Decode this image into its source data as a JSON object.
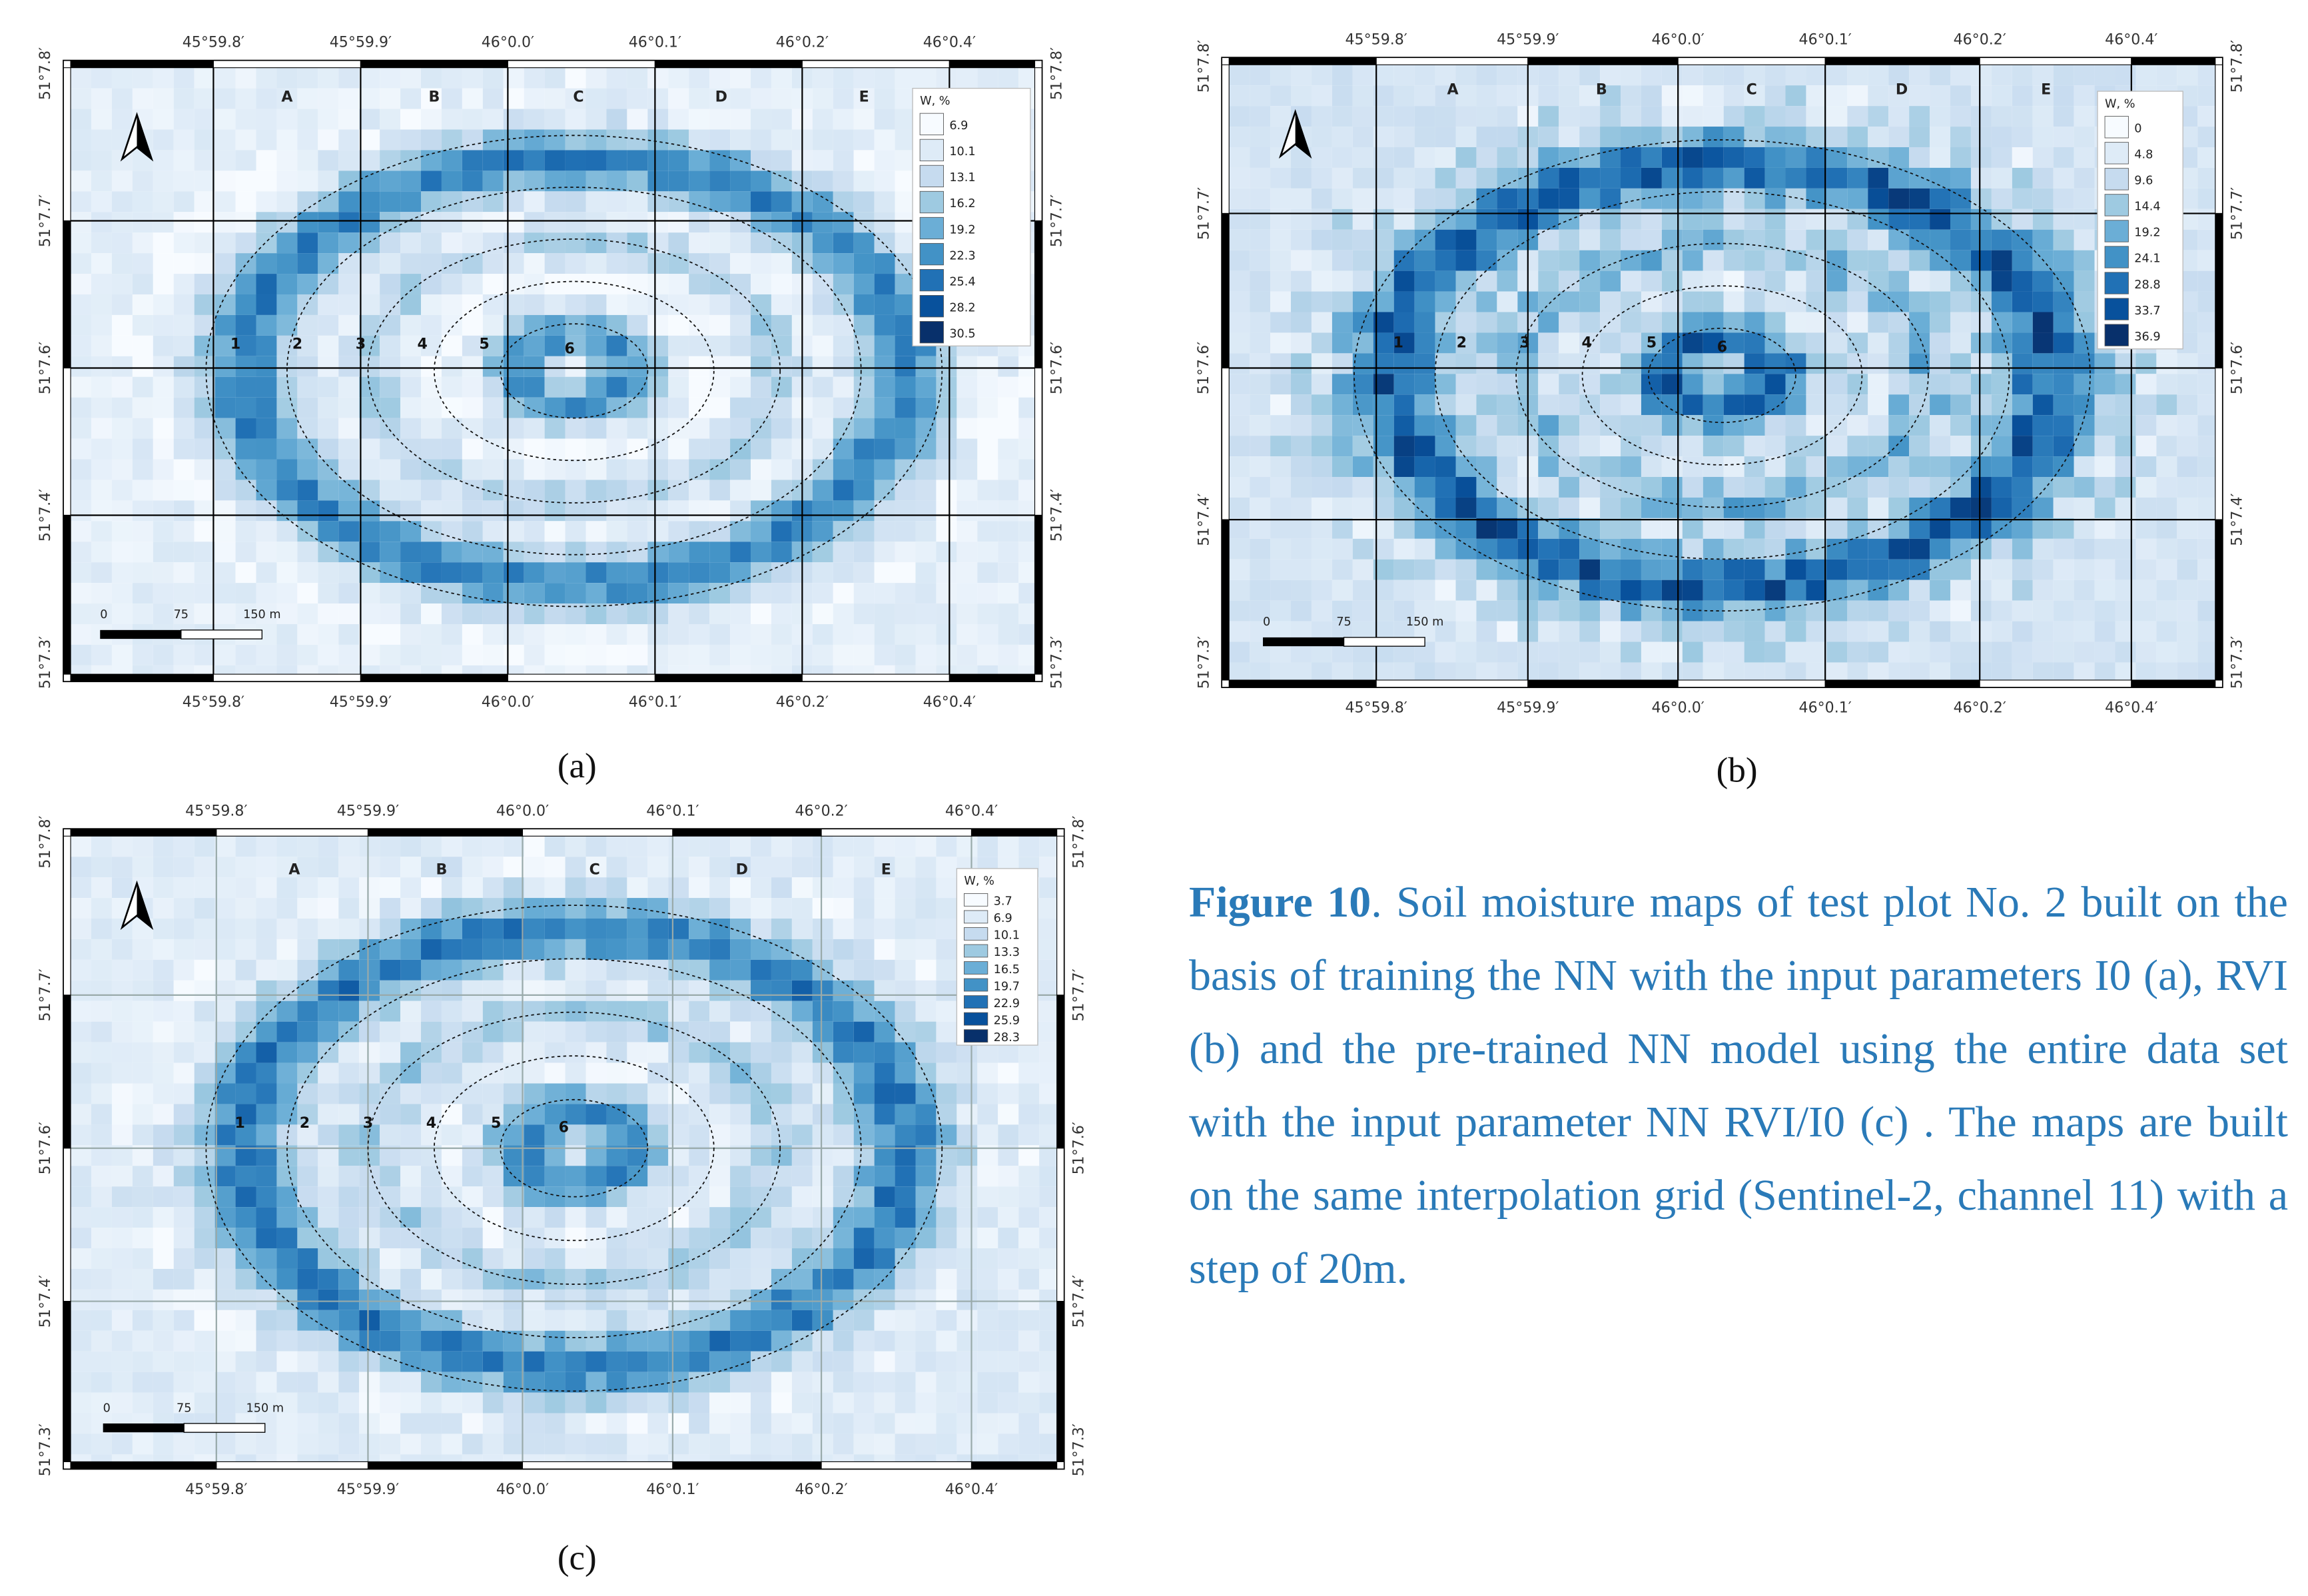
{
  "maps": [
    {
      "label": "(a)",
      "lon_labels": [
        "45°59.8′",
        "45°59.9′",
        "46°0.0′",
        "46°0.1′",
        "46°0.2′",
        "46°0.4′"
      ],
      "lat_labels": [
        "51°7.8′",
        "51°7.7′",
        "51°7.6′",
        "51°7.4′",
        "51°7.3′"
      ],
      "columns": [
        "A",
        "B",
        "C",
        "D",
        "E"
      ],
      "rings": [
        "1",
        "2",
        "3",
        "4",
        "5",
        "6"
      ],
      "legend_title": "W, %",
      "legend_values": [
        "6.9",
        "10.1",
        "13.1",
        "16.2",
        "19.2",
        "22.3",
        "25.4",
        "28.2",
        "30.5"
      ],
      "scale_labels": [
        "0",
        "75",
        "150 m"
      ]
    },
    {
      "label": "(b)",
      "lon_labels": [
        "45°59.8′",
        "45°59.9′",
        "46°0.0′",
        "46°0.1′",
        "46°0.2′",
        "46°0.4′"
      ],
      "lat_labels": [
        "51°7.8′",
        "51°7.7′",
        "51°7.6′",
        "51°7.4′",
        "51°7.3′"
      ],
      "columns": [
        "A",
        "B",
        "C",
        "D",
        "E"
      ],
      "rings": [
        "1",
        "2",
        "3",
        "4",
        "5",
        "6"
      ],
      "legend_title": "W, %",
      "legend_values": [
        "0",
        "4.8",
        "9.6",
        "14.4",
        "19.2",
        "24.1",
        "28.8",
        "33.7",
        "36.9"
      ],
      "scale_labels": [
        "0",
        "75",
        "150 m"
      ]
    },
    {
      "label": "(c)",
      "lon_labels": [
        "45°59.8′",
        "45°59.9′",
        "46°0.0′",
        "46°0.1′",
        "46°0.2′",
        "46°0.4′"
      ],
      "lat_labels": [
        "51°7.8′",
        "51°7.7′",
        "51°7.6′",
        "51°7.4′",
        "51°7.3′"
      ],
      "columns": [
        "A",
        "B",
        "C",
        "D",
        "E"
      ],
      "rings": [
        "1",
        "2",
        "3",
        "4",
        "5",
        "6"
      ],
      "legend_title": "W, %",
      "legend_values": [
        "3.7",
        "6.9",
        "10.1",
        "13.3",
        "16.5",
        "19.7",
        "22.9",
        "25.9",
        "28.3"
      ],
      "scale_labels": [
        "0",
        "75",
        "150 m"
      ]
    }
  ],
  "caption": {
    "label": "Figure 10",
    "text": ". Soil moisture maps of test plot No. 2 built on the basis of training the NN with the input parameters I0 (a), RVI (b) and the pre-trained NN model using the entire data set with the input parameter NN RVI/I0 (c) . The maps are built on the same interpolation grid (Sentinel-2, channel 11) with a step of 20m."
  }
}
